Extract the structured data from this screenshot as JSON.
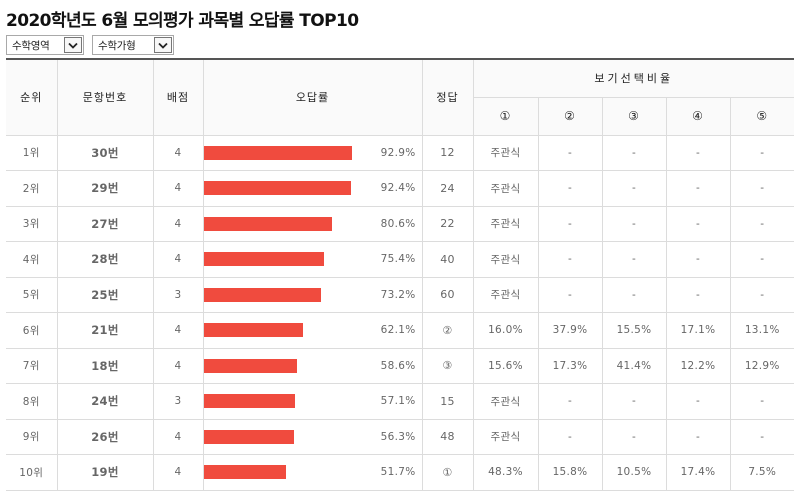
{
  "title": "2020학년도 6월 모의평가 과목별 오답률 TOP10",
  "filters": [
    {
      "value": "수학영역"
    },
    {
      "value": "수학가형"
    }
  ],
  "table": {
    "headers": {
      "rank": "순위",
      "question": "문항번호",
      "points": "배점",
      "error_rate": "오답률",
      "answer": "정답",
      "choice_ratio": "보기선택비율",
      "choices": [
        "①",
        "②",
        "③",
        "④",
        "⑤"
      ]
    },
    "bar_max_percent": 100,
    "rows": [
      {
        "rank": "1위",
        "question": "30번",
        "points": "4",
        "error_rate": 92.9,
        "error_rate_label": "92.9%",
        "answer": "12",
        "c1": "주관식",
        "c2": "-",
        "c3": "-",
        "c4": "-",
        "c5": "-"
      },
      {
        "rank": "2위",
        "question": "29번",
        "points": "4",
        "error_rate": 92.4,
        "error_rate_label": "92.4%",
        "answer": "24",
        "c1": "주관식",
        "c2": "-",
        "c3": "-",
        "c4": "-",
        "c5": "-"
      },
      {
        "rank": "3위",
        "question": "27번",
        "points": "4",
        "error_rate": 80.6,
        "error_rate_label": "80.6%",
        "answer": "22",
        "c1": "주관식",
        "c2": "-",
        "c3": "-",
        "c4": "-",
        "c5": "-"
      },
      {
        "rank": "4위",
        "question": "28번",
        "points": "4",
        "error_rate": 75.4,
        "error_rate_label": "75.4%",
        "answer": "40",
        "c1": "주관식",
        "c2": "-",
        "c3": "-",
        "c4": "-",
        "c5": "-"
      },
      {
        "rank": "5위",
        "question": "25번",
        "points": "3",
        "error_rate": 73.2,
        "error_rate_label": "73.2%",
        "answer": "60",
        "c1": "주관식",
        "c2": "-",
        "c3": "-",
        "c4": "-",
        "c5": "-"
      },
      {
        "rank": "6위",
        "question": "21번",
        "points": "4",
        "error_rate": 62.1,
        "error_rate_label": "62.1%",
        "answer": "②",
        "c1": "16.0%",
        "c2": "37.9%",
        "c3": "15.5%",
        "c4": "17.1%",
        "c5": "13.1%"
      },
      {
        "rank": "7위",
        "question": "18번",
        "points": "4",
        "error_rate": 58.6,
        "error_rate_label": "58.6%",
        "answer": "③",
        "c1": "15.6%",
        "c2": "17.3%",
        "c3": "41.4%",
        "c4": "12.2%",
        "c5": "12.9%"
      },
      {
        "rank": "8위",
        "question": "24번",
        "points": "3",
        "error_rate": 57.1,
        "error_rate_label": "57.1%",
        "answer": "15",
        "c1": "주관식",
        "c2": "-",
        "c3": "-",
        "c4": "-",
        "c5": "-"
      },
      {
        "rank": "9위",
        "question": "26번",
        "points": "4",
        "error_rate": 56.3,
        "error_rate_label": "56.3%",
        "answer": "48",
        "c1": "주관식",
        "c2": "-",
        "c3": "-",
        "c4": "-",
        "c5": "-"
      },
      {
        "rank": "10위",
        "question": "19번",
        "points": "4",
        "error_rate": 51.7,
        "error_rate_label": "51.7%",
        "answer": "①",
        "c1": "48.3%",
        "c2": "15.8%",
        "c3": "10.5%",
        "c4": "17.4%",
        "c5": "7.5%"
      }
    ]
  },
  "colors": {
    "bar": "#f04b3e",
    "header_border": "#555555"
  }
}
